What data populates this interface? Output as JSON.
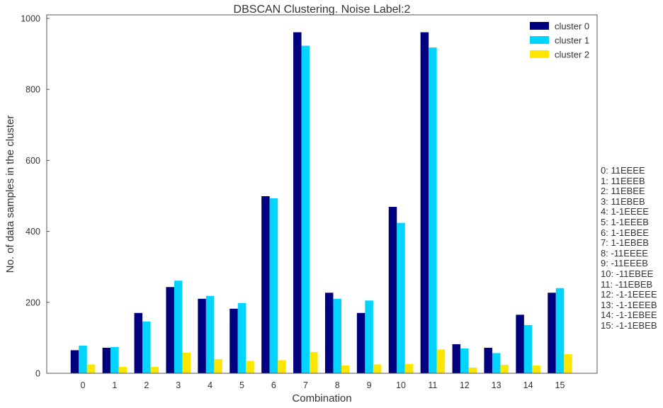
{
  "chart_data": {
    "type": "bar",
    "title": "DBSCAN Clustering. Noise Label:2",
    "xlabel": "Combination",
    "ylabel": "No. of data samples in the cluster",
    "categories": [
      "0",
      "1",
      "2",
      "3",
      "4",
      "5",
      "6",
      "7",
      "8",
      "9",
      "10",
      "11",
      "12",
      "13",
      "14",
      "15"
    ],
    "ylim": [
      0,
      1010
    ],
    "yticks": [
      0,
      200,
      400,
      600,
      800,
      1000
    ],
    "grid": false,
    "legend_position": "top-right",
    "series": [
      {
        "name": "cluster 0",
        "color": "#00007f",
        "values": [
          65,
          72,
          170,
          243,
          210,
          182,
          499,
          961,
          227,
          170,
          469,
          961,
          82,
          72,
          165,
          227
        ]
      },
      {
        "name": "cluster 1",
        "color": "#00d4ff",
        "values": [
          78,
          74,
          146,
          261,
          218,
          198,
          493,
          923,
          210,
          205,
          424,
          918,
          70,
          57,
          136,
          240
        ]
      },
      {
        "name": "cluster 2",
        "color": "#ffe600",
        "values": [
          25,
          18,
          18,
          58,
          40,
          35,
          37,
          60,
          22,
          25,
          26,
          67,
          16,
          24,
          22,
          54
        ]
      }
    ],
    "combination_key": [
      "0: 11EEEE",
      "1: 11EEEB",
      "2: 11EBEE",
      "3: 11EBEB",
      "4: 1-1EEEE",
      "5: 1-1EEEB",
      "6: 1-1EBEE",
      "7: 1-1EBEB",
      "8: -11EEEE",
      "9: -11EEEB",
      "10: -11EBEE",
      "11: -11EBEB",
      "12: -1-1EEEE",
      "13: -1-1EEEB",
      "14: -1-1EBEE",
      "15: -1-1EBEB"
    ]
  }
}
